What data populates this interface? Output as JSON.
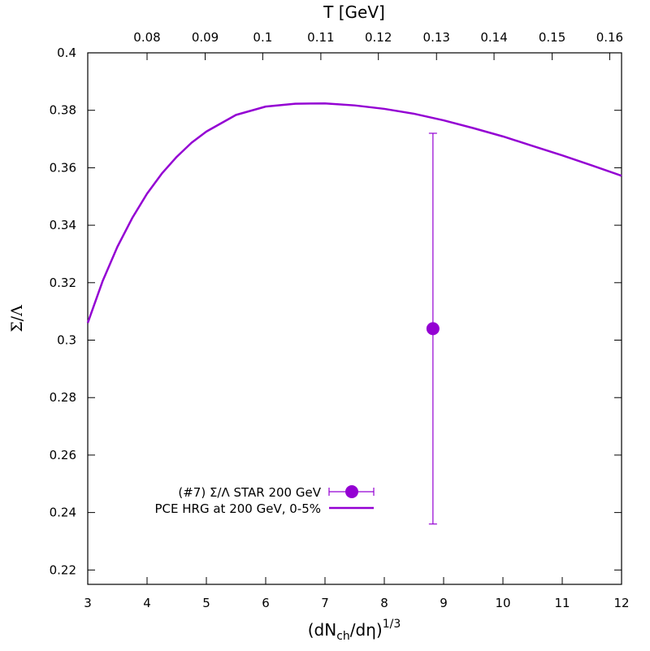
{
  "chart_data": {
    "type": "line",
    "xlabel": "(dN",
    "xlabel_sub": "ch",
    "xlabel_mid": "/dη)",
    "xlabel_sup": "1/3",
    "ylabel": "Σ/Λ",
    "x2label": "T [GeV]",
    "xlim": [
      3,
      12
    ],
    "ylim": [
      0.215,
      0.4
    ],
    "x_ticks": [
      3,
      4,
      5,
      6,
      7,
      8,
      9,
      10,
      11,
      12
    ],
    "x_tick_labels": [
      "3",
      "4",
      "5",
      "6",
      "7",
      "8",
      "9",
      "10",
      "11",
      "12"
    ],
    "y_ticks": [
      0.22,
      0.24,
      0.26,
      0.28,
      0.3,
      0.32,
      0.34,
      0.36,
      0.38,
      0.4
    ],
    "y_tick_labels": [
      "0.22",
      "0.24",
      "0.26",
      "0.28",
      "0.3",
      "0.32",
      "0.34",
      "0.36",
      "0.38",
      "0.4"
    ],
    "x2_ticks": [
      0.08,
      0.09,
      0.1,
      0.11,
      0.12,
      0.13,
      0.14,
      0.15,
      0.16
    ],
    "x2_tick_labels": [
      "0.08",
      "0.09",
      "0.1",
      "0.11",
      "0.12",
      "0.13",
      "0.14",
      "0.15",
      "0.16"
    ],
    "x2_tick_x_positions": [
      4.0,
      4.98,
      5.95,
      6.93,
      7.9,
      8.88,
      9.85,
      10.83,
      11.8
    ],
    "grid": false,
    "legend_position": "bottom-left",
    "series": [
      {
        "name": "(#7) Σ/Λ STAR 200 GeV",
        "kind": "points_with_errorbars",
        "color": "#9400d3",
        "points": [
          {
            "x": 8.82,
            "y": 0.304,
            "yerr_low": 0.236,
            "yerr_high": 0.372
          }
        ]
      },
      {
        "name": "PCE  HRG at 200 GeV, 0-5%",
        "kind": "line",
        "color": "#9400d3",
        "x": [
          3.0,
          3.25,
          3.5,
          3.75,
          4.0,
          4.25,
          4.5,
          4.75,
          5.0,
          5.5,
          6.0,
          6.5,
          7.0,
          7.5,
          8.0,
          8.5,
          9.0,
          9.5,
          10.0,
          10.5,
          11.0,
          11.5,
          12.0
        ],
        "y": [
          0.306,
          0.3205,
          0.3325,
          0.3425,
          0.351,
          0.358,
          0.3638,
          0.3687,
          0.3726,
          0.3784,
          0.3813,
          0.3823,
          0.3824,
          0.3817,
          0.3805,
          0.3788,
          0.3765,
          0.3738,
          0.3709,
          0.3676,
          0.3643,
          0.3608,
          0.3572
        ]
      }
    ]
  }
}
